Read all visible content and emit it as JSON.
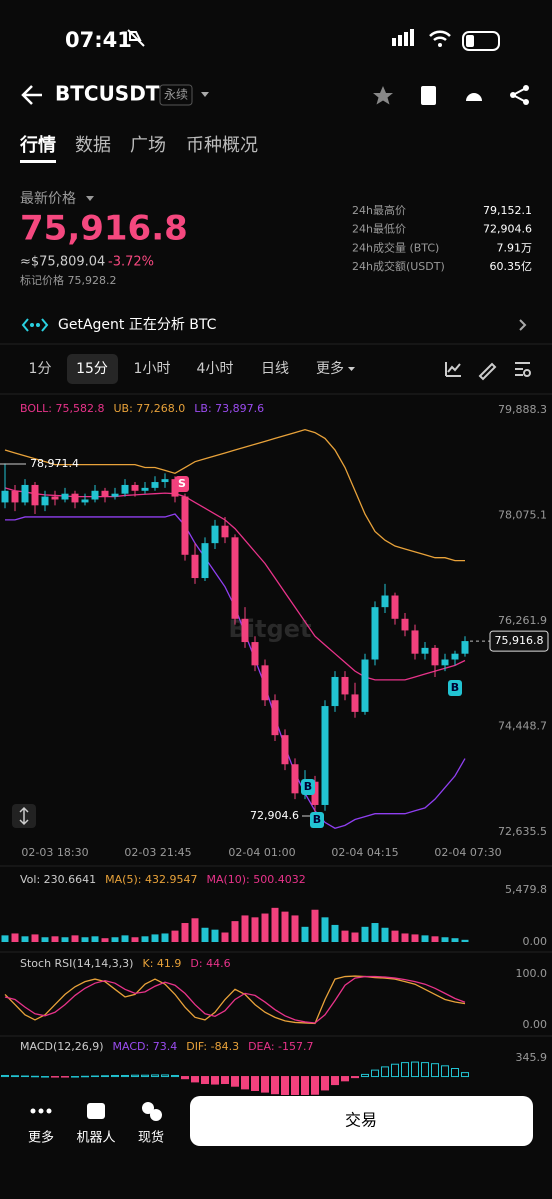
{
  "status": {
    "time": "07:41"
  },
  "header": {
    "symbol": "BTCUSDT",
    "tag": "永续"
  },
  "tabs": [
    "行情",
    "数据",
    "广场",
    "币种概况"
  ],
  "price": {
    "label": "最新价格",
    "value": "75,916.8",
    "approx": "≈$75,809.04",
    "change": "-3.72%",
    "mark": "标记价格 75,928.2"
  },
  "stats": [
    [
      "24h最高价",
      "79,152.1"
    ],
    [
      "24h最低价",
      "72,904.6"
    ],
    [
      "24h成交量 (BTC)",
      "7.91万"
    ],
    [
      "24h成交额(USDT)",
      "60.35亿"
    ]
  ],
  "agent": "GetAgent 正在分析 BTC",
  "timeframes": [
    "1分",
    "15分",
    "1小时",
    "4小时",
    "日线",
    "更多"
  ],
  "chart_data": {
    "type": "candlestick",
    "legend": [
      {
        "text": "BOLL: 75,582.8",
        "color": "#e8338a"
      },
      {
        "text": "UB: 77,268.0",
        "color": "#e8a23a"
      },
      {
        "text": "LB: 73,897.6",
        "color": "#9b4cf0"
      }
    ],
    "up_color": "#22c3d2",
    "down_color": "#f2417d",
    "candles": [
      [
        78300,
        78971.4,
        78200,
        78500
      ],
      [
        78500,
        78600,
        78150,
        78300
      ],
      [
        78300,
        78700,
        78250,
        78600
      ],
      [
        78600,
        78650,
        78100,
        78250
      ],
      [
        78250,
        78500,
        78150,
        78400
      ],
      [
        78400,
        78500,
        78250,
        78350
      ],
      [
        78350,
        78550,
        78300,
        78450
      ],
      [
        78450,
        78500,
        78200,
        78300
      ],
      [
        78300,
        78450,
        78250,
        78350
      ],
      [
        78350,
        78600,
        78300,
        78500
      ],
      [
        78500,
        78550,
        78300,
        78400
      ],
      [
        78400,
        78550,
        78350,
        78450
      ],
      [
        78450,
        78700,
        78400,
        78600
      ],
      [
        78600,
        78650,
        78400,
        78500
      ],
      [
        78500,
        78650,
        78450,
        78550
      ],
      [
        78550,
        78750,
        78500,
        78650
      ],
      [
        78650,
        78800,
        78550,
        78700
      ],
      [
        78700,
        78750,
        78300,
        78400
      ],
      [
        78400,
        78450,
        77300,
        77400
      ],
      [
        77400,
        77600,
        76900,
        77000
      ],
      [
        77000,
        77700,
        76950,
        77600
      ],
      [
        77600,
        78000,
        77500,
        77900
      ],
      [
        77900,
        78050,
        77600,
        77700
      ],
      [
        77700,
        77750,
        76200,
        76300
      ],
      [
        76300,
        76500,
        75800,
        75900
      ],
      [
        75900,
        76000,
        75400,
        75500
      ],
      [
        75500,
        75600,
        74800,
        74900
      ],
      [
        74900,
        75000,
        74200,
        74300
      ],
      [
        74300,
        74400,
        73700,
        73800
      ],
      [
        73800,
        73900,
        73200,
        73300
      ],
      [
        73300,
        73700,
        73200,
        73500
      ],
      [
        73500,
        73600,
        72904.6,
        73100
      ],
      [
        73100,
        74900,
        73000,
        74800
      ],
      [
        74800,
        75400,
        74700,
        75300
      ],
      [
        75300,
        75400,
        74900,
        75000
      ],
      [
        75000,
        75200,
        74600,
        74700
      ],
      [
        74700,
        75700,
        74650,
        75600
      ],
      [
        75600,
        76600,
        75500,
        76500
      ],
      [
        76500,
        76900,
        76400,
        76700
      ],
      [
        76700,
        76750,
        76200,
        76300
      ],
      [
        76300,
        76400,
        76000,
        76100
      ],
      [
        76100,
        76200,
        75600,
        75700
      ],
      [
        75700,
        75900,
        75600,
        75800
      ],
      [
        75800,
        75850,
        75300,
        75500
      ],
      [
        75500,
        75700,
        75400,
        75600
      ],
      [
        75600,
        75750,
        75500,
        75700
      ],
      [
        75700,
        76000,
        75650,
        75916.8
      ]
    ],
    "bands": [
      {
        "color": "#e8a23a",
        "values": [
          79200,
          79150,
          79100,
          79050,
          79000,
          78950,
          78950,
          78950,
          78950,
          78950,
          78950,
          78950,
          78950,
          78950,
          78900,
          78900,
          78850,
          78800,
          78900,
          79000,
          79050,
          79100,
          79150,
          79200,
          79250,
          79300,
          79350,
          79400,
          79450,
          79500,
          79550,
          79500,
          79400,
          79200,
          78900,
          78500,
          78100,
          77800,
          77650,
          77550,
          77500,
          77450,
          77400,
          77350,
          77350,
          77300,
          77300
        ]
      },
      {
        "color": "#e8338a",
        "values": [
          78550,
          78500,
          78480,
          78450,
          78430,
          78420,
          78410,
          78400,
          78400,
          78400,
          78400,
          78400,
          78420,
          78430,
          78440,
          78450,
          78460,
          78450,
          78400,
          78300,
          78200,
          78100,
          78000,
          77850,
          77650,
          77450,
          77250,
          77000,
          76750,
          76500,
          76250,
          76000,
          75850,
          75700,
          75550,
          75400,
          75300,
          75250,
          75250,
          75250,
          75250,
          75300,
          75350,
          75400,
          75450,
          75500,
          75582.8
        ]
      },
      {
        "color": "#8f3ff0",
        "values": [
          78000,
          78000,
          78050,
          78050,
          78050,
          78050,
          78050,
          78050,
          78050,
          78050,
          78050,
          78050,
          78050,
          78050,
          78050,
          78050,
          78050,
          78100,
          77900,
          77600,
          77350,
          77100,
          76850,
          76500,
          76050,
          75600,
          75150,
          74600,
          74100,
          73650,
          73300,
          73000,
          72800,
          72700,
          72750,
          72850,
          72900,
          72950,
          72950,
          72950,
          72950,
          73000,
          73050,
          73200,
          73400,
          73600,
          73897.6
        ]
      }
    ],
    "ylim": [
      72635.5,
      79888.3
    ],
    "yticks": [
      {
        "value": 79888.3,
        "label": "79,888.3"
      },
      {
        "value": 78075.1,
        "label": "78,075.1"
      },
      {
        "value": 76261.9,
        "label": "76,261.9"
      },
      {
        "value": 74448.7,
        "label": "74,448.7"
      },
      {
        "value": 72635.5,
        "label": "72,635.5"
      }
    ],
    "x_labels": [
      "02-03 18:30",
      "02-03 21:45",
      "02-04 01:00",
      "02-04 04:15",
      "02-04 07:30"
    ],
    "current_price": {
      "value": 75916.8,
      "label": "75,916.8"
    },
    "high_label": "78,971.4",
    "low_label": "72,904.6",
    "signals": [
      "S",
      "B",
      "B",
      "B"
    ],
    "watermark": "Bitget",
    "volume": {
      "legend": [
        {
          "text": "Vol: 230.6641",
          "color": "#cccccc"
        },
        {
          "text": "MA(5): 432.9547",
          "color": "#e8a23a"
        },
        {
          "text": "MA(10): 500.4032",
          "color": "#e8338a"
        }
      ],
      "values": [
        700,
        900,
        600,
        800,
        500,
        600,
        500,
        700,
        500,
        600,
        400,
        500,
        700,
        500,
        600,
        800,
        900,
        1200,
        2000,
        2500,
        1500,
        1300,
        1000,
        2200,
        2800,
        2600,
        3000,
        3600,
        3200,
        2800,
        1600,
        3400,
        2600,
        1800,
        1200,
        1000,
        1600,
        2000,
        1500,
        1200,
        900,
        800,
        700,
        600,
        500,
        400,
        230.6641
      ],
      "ylim": [
        0,
        5479.8
      ],
      "yticks": [
        {
          "value": 5479.8,
          "label": "5,479.8"
        },
        {
          "value": 0,
          "label": "0.00"
        }
      ]
    },
    "stoch": {
      "legend": [
        {
          "text": "Stoch RSI(14,14,3,3)",
          "color": "#cccccc"
        },
        {
          "text": "K: 41.9",
          "color": "#e8a23a"
        },
        {
          "text": "D: 44.6",
          "color": "#e8338a"
        }
      ],
      "series": [
        {
          "color": "#e8a23a",
          "values": [
            60,
            40,
            20,
            10,
            20,
            40,
            60,
            75,
            85,
            90,
            85,
            70,
            55,
            60,
            80,
            90,
            80,
            60,
            35,
            15,
            10,
            25,
            50,
            70,
            60,
            40,
            25,
            15,
            8,
            5,
            4,
            3,
            50,
            90,
            95,
            96,
            95,
            93,
            92,
            90,
            85,
            80,
            70,
            60,
            50,
            45,
            41.9
          ]
        },
        {
          "color": "#e8338a",
          "values": [
            55,
            50,
            35,
            22,
            18,
            25,
            40,
            58,
            72,
            82,
            87,
            82,
            70,
            62,
            65,
            76,
            84,
            78,
            62,
            40,
            22,
            17,
            28,
            50,
            62,
            58,
            45,
            30,
            18,
            10,
            6,
            4,
            20,
            48,
            78,
            92,
            95,
            95,
            94,
            92,
            89,
            85,
            80,
            72,
            62,
            52,
            44.6
          ]
        }
      ],
      "ylim": [
        0,
        100
      ],
      "yticks": [
        {
          "value": 100,
          "label": "100.0"
        },
        {
          "value": 0,
          "label": "0.00"
        }
      ]
    },
    "macd": {
      "legend": [
        {
          "text": "MACD(12,26,9)",
          "color": "#cccccc"
        },
        {
          "text": "MACD: 73.4",
          "color": "#9b4cf0"
        },
        {
          "text": "DIF: -84.3",
          "color": "#e8a23a"
        },
        {
          "text": "DEA: -157.7",
          "color": "#e8338a"
        }
      ],
      "values": [
        20,
        15,
        10,
        5,
        0,
        -5,
        -5,
        0,
        5,
        10,
        15,
        20,
        20,
        25,
        25,
        30,
        30,
        20,
        -40,
        -100,
        -130,
        -140,
        -130,
        -180,
        -230,
        -260,
        -290,
        -320,
        -340,
        -350,
        -340,
        -330,
        -250,
        -150,
        -80,
        -20,
        40,
        120,
        180,
        230,
        260,
        270,
        260,
        240,
        200,
        150,
        73.4
      ],
      "ylim": [
        -400,
        345.9
      ],
      "yticks": [
        345.9
      ]
    }
  },
  "bottom": {
    "items": [
      "更多",
      "机器人",
      "现货"
    ],
    "button": "交易"
  }
}
